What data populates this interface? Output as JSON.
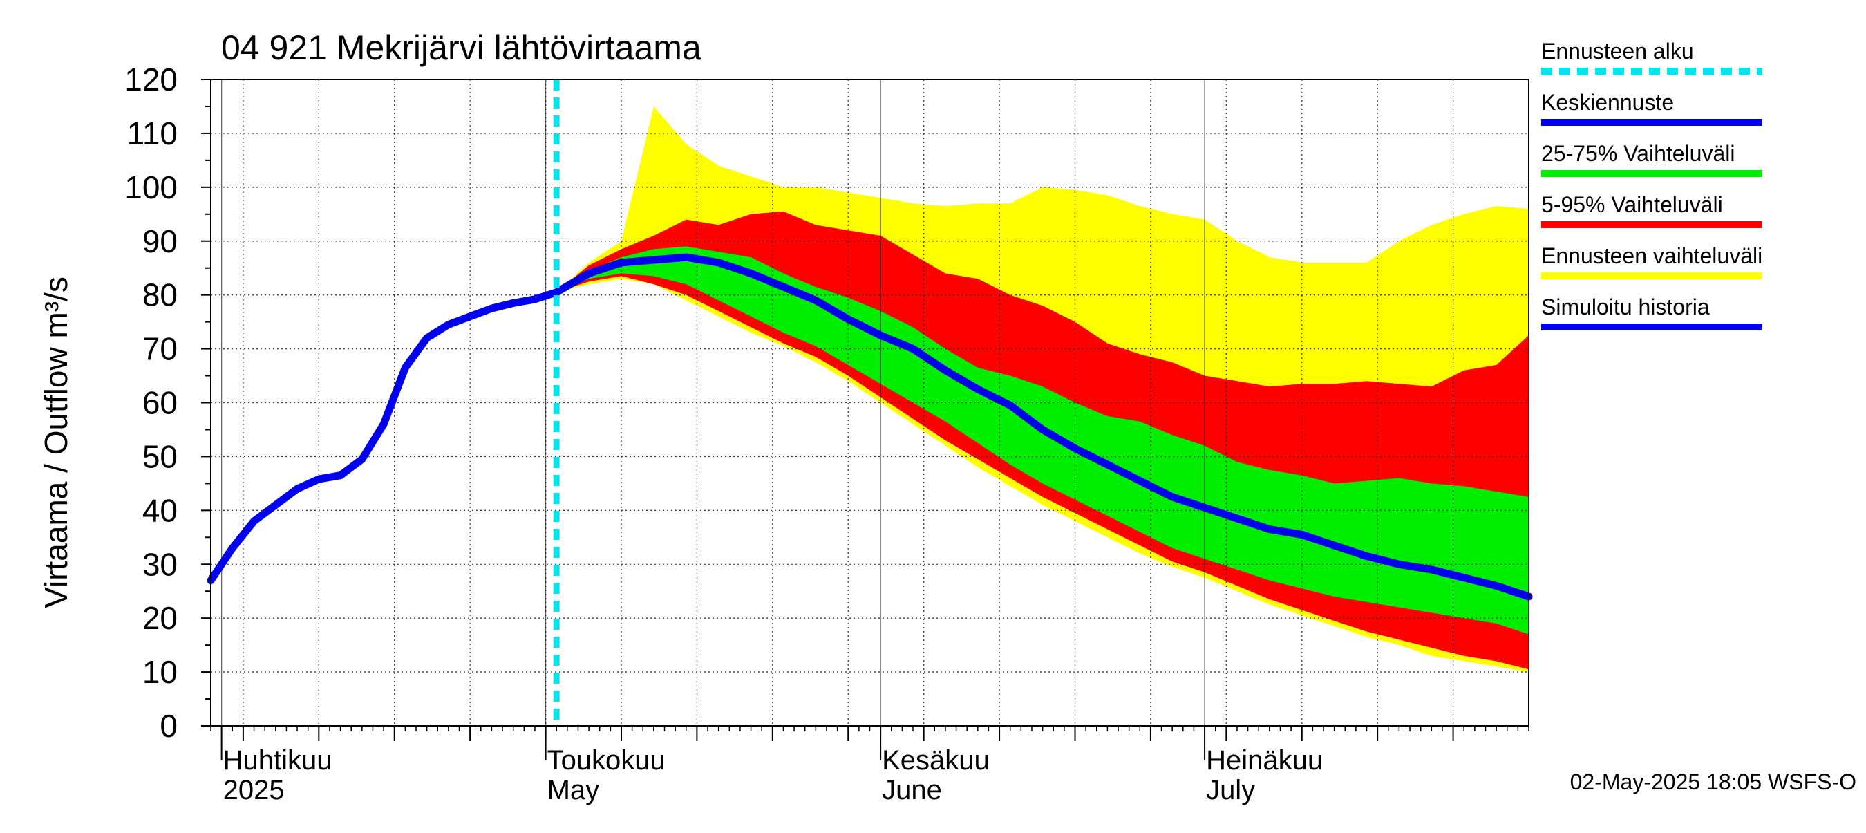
{
  "chart_data": {
    "type": "area",
    "title": "04 921 Mekrijärvi lähtövirtaama",
    "ylabel": "Virtaama / Outflow    m³/s",
    "ylim": [
      0,
      120
    ],
    "yticks": [
      0,
      10,
      20,
      30,
      40,
      50,
      60,
      70,
      80,
      90,
      100,
      110,
      120
    ],
    "grid": true,
    "legend_position": "right",
    "x_start": "2025-03-31",
    "x_end": "2025-07-31",
    "forecast_start": "2025-05-02",
    "month_labels": [
      {
        "date": "2025-04-01",
        "fi": "Huhtikuu",
        "en": "2025"
      },
      {
        "date": "2025-05-01",
        "fi": "Toukokuu",
        "en": "May"
      },
      {
        "date": "2025-06-01",
        "fi": "Kesäkuu",
        "en": "June"
      },
      {
        "date": "2025-07-01",
        "fi": "Heinäkuu",
        "en": "July"
      }
    ],
    "footer": "02-May-2025 18:05 WSFS-O",
    "colors": {
      "forecast_start": "#00e5ee",
      "median": "#0000ee",
      "p25_75": "#00ee00",
      "p5_95": "#ff0000",
      "range": "#ffff00",
      "history": "#0000ee"
    },
    "legend": [
      {
        "key": "forecast_start",
        "label": "Ennusteen alku",
        "style": "dashed"
      },
      {
        "key": "median",
        "label": "Keskiennuste",
        "style": "solid"
      },
      {
        "key": "p25_75",
        "label": "25-75% Vaihteluväli",
        "style": "solid"
      },
      {
        "key": "p5_95",
        "label": "5-95% Vaihteluväli",
        "style": "solid"
      },
      {
        "key": "range",
        "label": "Ennusteen vaihteluväli",
        "style": "solid"
      },
      {
        "key": "history",
        "label": "Simuloitu historia",
        "style": "solid"
      }
    ],
    "history": {
      "x": [
        "2025-03-31",
        "2025-04-02",
        "2025-04-04",
        "2025-04-06",
        "2025-04-08",
        "2025-04-10",
        "2025-04-12",
        "2025-04-14",
        "2025-04-16",
        "2025-04-18",
        "2025-04-20",
        "2025-04-22",
        "2025-04-24",
        "2025-04-26",
        "2025-04-28",
        "2025-04-30",
        "2025-05-02"
      ],
      "y": [
        27,
        33,
        38,
        41,
        44,
        45.8,
        46.5,
        49.5,
        56,
        66.5,
        72,
        74.5,
        76,
        77.5,
        78.5,
        79.2,
        80.5
      ]
    },
    "forecast": {
      "x": [
        "2025-05-02",
        "2025-05-05",
        "2025-05-08",
        "2025-05-11",
        "2025-05-14",
        "2025-05-17",
        "2025-05-20",
        "2025-05-23",
        "2025-05-26",
        "2025-05-29",
        "2025-06-01",
        "2025-06-04",
        "2025-06-07",
        "2025-06-10",
        "2025-06-13",
        "2025-06-16",
        "2025-06-19",
        "2025-06-22",
        "2025-06-25",
        "2025-06-28",
        "2025-07-01",
        "2025-07-04",
        "2025-07-07",
        "2025-07-10",
        "2025-07-13",
        "2025-07-16",
        "2025-07-19",
        "2025-07-22",
        "2025-07-25",
        "2025-07-28",
        "2025-07-31"
      ],
      "median": [
        80.5,
        84,
        86,
        86.5,
        87,
        86,
        84,
        81.5,
        79,
        75.5,
        72.5,
        70,
        66,
        62.5,
        59.5,
        55,
        51.5,
        48.5,
        45.5,
        42.5,
        40.5,
        38.5,
        36.5,
        35.5,
        33.5,
        31.5,
        30,
        29,
        27.5,
        26,
        24
      ],
      "p25": [
        80.5,
        83,
        84,
        83.5,
        82,
        79,
        76,
        73,
        70.5,
        67,
        63.5,
        60,
        56.5,
        52.5,
        48.5,
        45,
        42,
        39,
        36,
        33,
        31,
        29,
        27,
        25.5,
        24,
        23,
        22,
        21,
        20,
        19,
        17
      ],
      "p75": [
        80.5,
        84.5,
        87,
        88.5,
        89,
        88,
        87,
        84,
        81.5,
        79.5,
        77,
        74,
        70,
        66.5,
        65,
        63,
        60,
        57.5,
        56.5,
        54,
        52,
        49,
        47.5,
        46.5,
        45,
        45.5,
        46,
        45,
        44.5,
        43.5,
        42.5
      ],
      "p5": [
        80.5,
        82.5,
        83.5,
        82,
        80,
        77,
        74,
        71,
        68.5,
        65,
        61,
        57,
        53,
        49.5,
        46,
        42.5,
        39.5,
        36.5,
        33.5,
        30.5,
        28.5,
        26,
        23.5,
        21.5,
        19.5,
        17.5,
        16,
        14.5,
        13,
        12,
        10.5
      ],
      "p95": [
        80.5,
        85.5,
        88.5,
        91,
        94,
        93,
        95,
        95.5,
        93,
        92,
        91,
        87.5,
        84,
        83,
        80,
        78,
        75,
        71,
        69,
        67.5,
        65,
        64,
        63,
        63.5,
        63.5,
        64,
        63.5,
        63,
        66,
        67,
        72.5
      ],
      "min": [
        80.5,
        82,
        83,
        82,
        79,
        76,
        73,
        70.5,
        67.5,
        64,
        60,
        56,
        52,
        48,
        44.5,
        41,
        38,
        35,
        32,
        29.5,
        27.5,
        25,
        22.5,
        20.5,
        18.5,
        16.5,
        15,
        13,
        12,
        11,
        10
      ],
      "max": [
        80.5,
        86,
        90,
        115,
        108,
        104,
        102,
        100,
        100,
        99,
        98,
        97,
        96.5,
        97,
        97,
        100,
        99.5,
        98.5,
        96.5,
        95,
        94,
        90,
        87,
        86,
        86,
        86,
        90,
        93,
        95,
        96.5,
        96
      ]
    }
  }
}
